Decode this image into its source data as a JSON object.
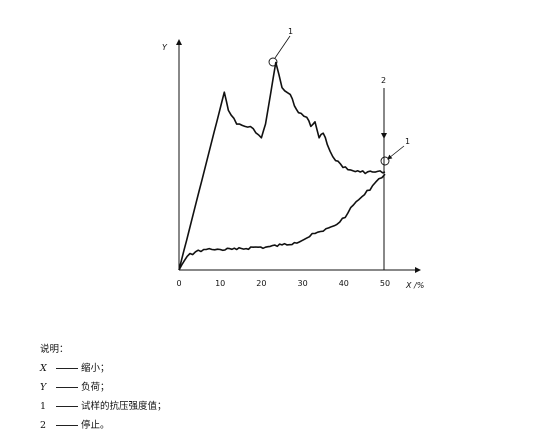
{
  "chart_data": {
    "type": "line",
    "xlabel": "X /%",
    "ylabel": "Y",
    "x_ticks": [
      "0",
      "10",
      "20",
      "30",
      "40",
      "50"
    ],
    "xlim": [
      0,
      55
    ],
    "ylim": [
      0,
      100
    ],
    "series": [
      {
        "id": "loading-curve",
        "x": [
          0,
          11,
          12,
          14,
          16,
          18,
          20,
          21,
          23.5,
          25,
          27,
          28,
          29,
          31,
          32,
          33,
          34,
          35,
          36,
          38,
          41,
          44,
          47,
          50
        ],
        "y": [
          0,
          78,
          70,
          64,
          63,
          62,
          58,
          64,
          91,
          80,
          77,
          72,
          69,
          67,
          63,
          65,
          58,
          60,
          55,
          48,
          44,
          43,
          43,
          43
        ]
      },
      {
        "id": "return-curve",
        "x": [
          0,
          2,
          4,
          6,
          8,
          10,
          14,
          18,
          21,
          25,
          28,
          31,
          33,
          35,
          37,
          39,
          41,
          43,
          45,
          47,
          48.5,
          50
        ],
        "y": [
          0,
          6,
          8,
          9,
          9,
          9,
          9,
          10,
          10,
          11,
          12,
          14,
          16,
          17,
          19,
          21,
          25,
          30,
          33,
          37,
          40,
          42
        ]
      }
    ],
    "annotations": {
      "peak_marker": {
        "label": "1",
        "x": 23.5,
        "y": 91
      },
      "end_marker": {
        "label": "1",
        "x": 50.3,
        "y": 40.5
      },
      "stop_line": {
        "label": "2",
        "x": 50
      }
    }
  },
  "legend": {
    "heading": "说明：",
    "items": [
      {
        "key": "X",
        "text": "缩小；"
      },
      {
        "key": "Y",
        "text": "负荷；"
      },
      {
        "key": "1",
        "text": "试样的抗压强度值；"
      },
      {
        "key": "2",
        "text": "停止。"
      }
    ]
  }
}
